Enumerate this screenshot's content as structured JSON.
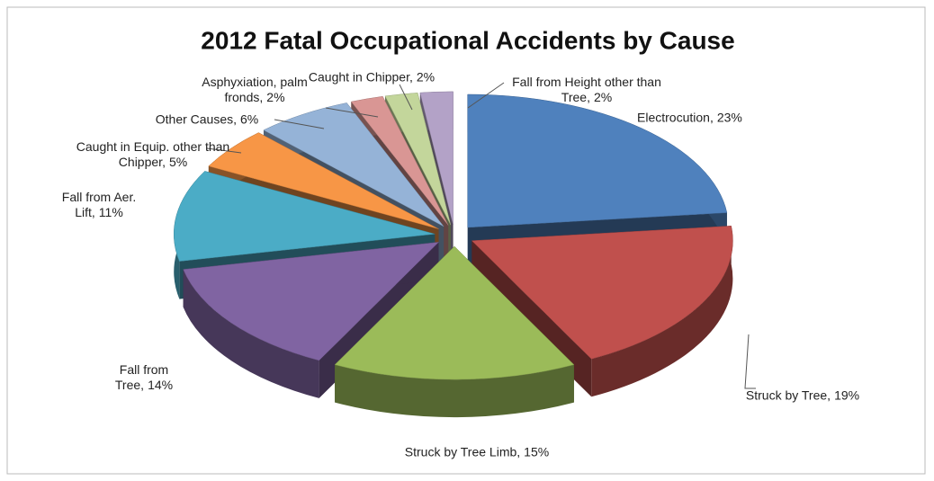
{
  "chart_data": {
    "type": "pie",
    "title": "2012 Fatal Occupational Accidents by Cause",
    "categories": [
      "Electrocution",
      "Struck by Tree",
      "Struck by Tree Limb",
      "Fall from Tree",
      "Fall from Aer. Lift",
      "Caught in Equip. other than Chipper",
      "Other Causes",
      "Asphyxiation, palm fronds",
      "Caught in Chipper",
      "Fall from Height other than Tree"
    ],
    "values": [
      23,
      19,
      15,
      14,
      11,
      5,
      6,
      2,
      2,
      2
    ],
    "value_labels": [
      "23%",
      "19%",
      "15%",
      "14%",
      "11%",
      "5%",
      "6%",
      "2%",
      "2%",
      "2%"
    ],
    "colors": [
      "#4f81bd",
      "#c0504d",
      "#9bbb59",
      "#8064a2",
      "#4bacc6",
      "#f79646",
      "#95b3d7",
      "#d99694",
      "#c3d69b",
      "#b3a2c7"
    ]
  }
}
